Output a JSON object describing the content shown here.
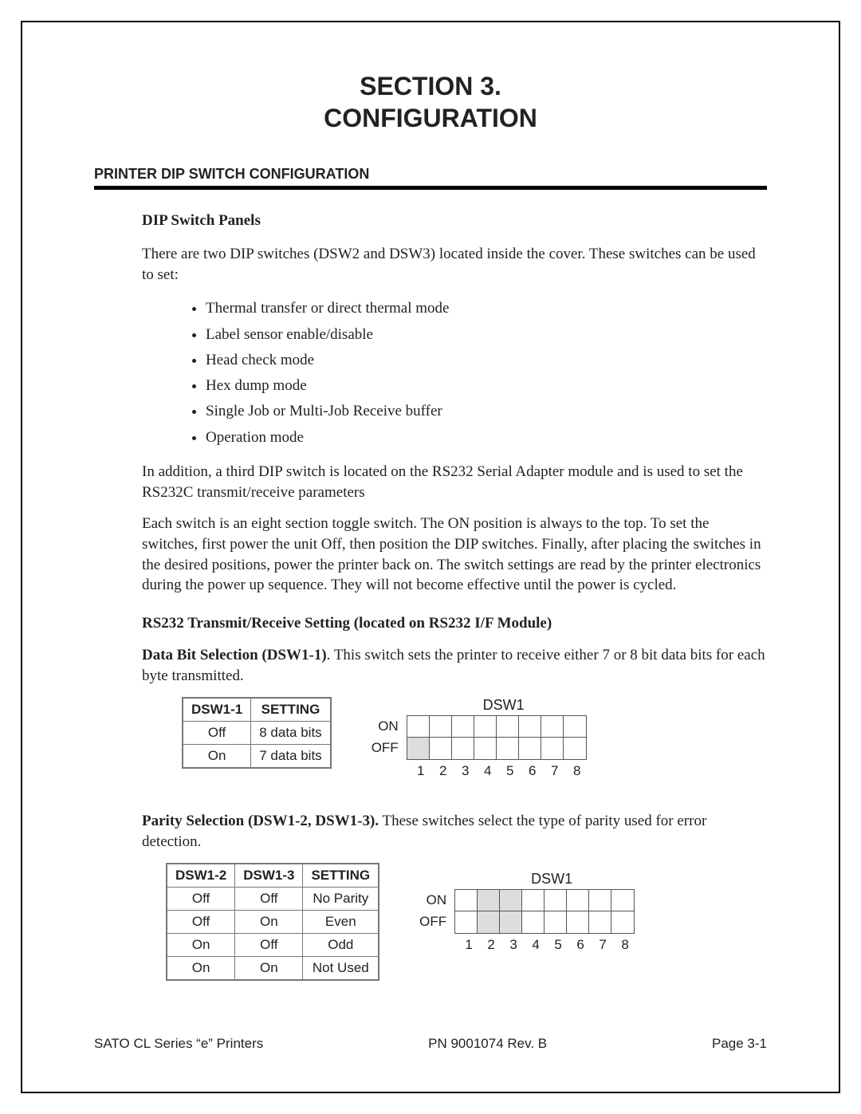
{
  "header": {
    "section_line1": "SECTION 3.",
    "section_line2": "CONFIGURATION",
    "subsection": "PRINTER DIP SWITCH CONFIGURATION"
  },
  "panels": {
    "heading": "DIP Switch Panels",
    "intro": "There are two DIP switches (DSW2 and DSW3) located inside the cover. These switches can be used to set:",
    "bullets": [
      "Thermal transfer or direct thermal mode",
      "Label sensor enable/disable",
      "Head check mode",
      "Hex dump mode",
      "Single Job or Multi-Job Receive buffer",
      "Operation mode"
    ],
    "para2": "In addition, a third DIP switch is located on the RS232 Serial Adapter module and is used to set the RS232C transmit/receive parameters",
    "para3": "Each switch is an eight section toggle switch. The ON position is always to the top. To set the switches, first power the unit Off, then position the DIP switches. Finally, after placing the switches in the desired positions, power the printer back on. The switch settings are read by the printer electronics during the power up sequence. They will not become effective until the power is cycled."
  },
  "rs232": {
    "heading": "RS232 Transmit/Receive Setting (located on RS232 I/F Module)",
    "databit_lead": "Data Bit Selection (DSW1-1)",
    "databit_rest": ". This switch sets the printer to receive either 7 or 8 bit data bits for each byte transmitted.",
    "parity_lead": "Parity Selection (DSW1-2, DSW1-3).",
    "parity_rest": " These switches select the type of parity used for error detection."
  },
  "table1": {
    "headers": [
      "DSW1-1",
      "SETTING"
    ],
    "rows": [
      [
        "Off",
        "8 data bits"
      ],
      [
        "On",
        "7 data bits"
      ]
    ]
  },
  "table2": {
    "headers": [
      "DSW1-2",
      "DSW1-3",
      "SETTING"
    ],
    "rows": [
      [
        "Off",
        "Off",
        "No Parity"
      ],
      [
        "Off",
        "On",
        "Even"
      ],
      [
        "On",
        "Off",
        "Odd"
      ],
      [
        "On",
        "On",
        "Not Used"
      ]
    ]
  },
  "dip1": {
    "title": "DSW1",
    "on_label": "ON",
    "off_label": "OFF",
    "count": 8,
    "shaded_on": [],
    "shaded_off": [
      1
    ]
  },
  "dip2": {
    "title": "DSW1",
    "on_label": "ON",
    "off_label": "OFF",
    "count": 8,
    "shaded_on": [
      2,
      3
    ],
    "shaded_off": [
      2,
      3
    ]
  },
  "footer": {
    "left": "SATO CL Series “e” Printers",
    "center": "PN 9001074 Rev. B",
    "right": "Page 3-1"
  },
  "colors": {
    "text": "#222222",
    "border": "#000000",
    "table_border": "#777777",
    "shade": "#dddddd",
    "bg": "#ffffff"
  }
}
